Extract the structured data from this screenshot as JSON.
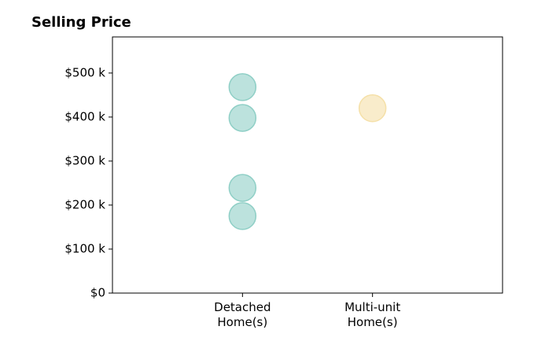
{
  "chart_data": {
    "type": "scatter",
    "title": "Selling Price",
    "categories": [
      "Detached\nHome(s)",
      "Multi-unit\nHome(s)"
    ],
    "series": [
      {
        "color": "#8fcfc6",
        "values": [
          468000,
          398000,
          239000,
          175000
        ]
      },
      {
        "color": "#f5e0a8",
        "values": [
          420000
        ]
      }
    ],
    "ylim": [
      0,
      582000
    ],
    "yticks": [
      {
        "value": 0,
        "label": "$0"
      },
      {
        "value": 100000,
        "label": "$100 k"
      },
      {
        "value": 200000,
        "label": "$200 k"
      },
      {
        "value": 300000,
        "label": "$300 k"
      },
      {
        "value": 400000,
        "label": "$400 k"
      },
      {
        "value": 500000,
        "label": "$500 k"
      }
    ],
    "grid": false
  }
}
